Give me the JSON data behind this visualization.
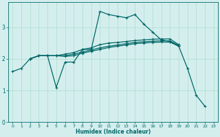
{
  "xlabel": "Humidex (Indice chaleur)",
  "bg_color": "#d4eeee",
  "line_color": "#006666",
  "grid_color": "#aaddcc",
  "xlim": [
    -0.5,
    23.5
  ],
  "ylim": [
    0,
    3.8
  ],
  "xticks": [
    0,
    1,
    2,
    3,
    4,
    5,
    6,
    7,
    8,
    9,
    10,
    11,
    12,
    13,
    14,
    15,
    16,
    17,
    18,
    19,
    20,
    21,
    22,
    23
  ],
  "yticks": [
    0,
    1,
    2,
    3
  ],
  "lines": [
    {
      "x": [
        0,
        1,
        2,
        3,
        4,
        5,
        6,
        7,
        8,
        9,
        10,
        11,
        12,
        13,
        14,
        15,
        16,
        17,
        18,
        19,
        20,
        21,
        22
      ],
      "y": [
        1.6,
        1.7,
        2.0,
        2.1,
        2.1,
        1.1,
        1.9,
        1.9,
        2.3,
        2.3,
        3.5,
        3.4,
        3.35,
        3.3,
        3.4,
        3.1,
        2.85,
        2.6,
        2.55,
        2.4,
        1.7,
        0.85,
        0.5
      ]
    },
    {
      "x": [
        2,
        3,
        4,
        5,
        6,
        7,
        8,
        9,
        10,
        11,
        12,
        13,
        14,
        15,
        16,
        17,
        18,
        19
      ],
      "y": [
        2.0,
        2.1,
        2.1,
        2.1,
        2.15,
        2.2,
        2.3,
        2.35,
        2.45,
        2.5,
        2.52,
        2.55,
        2.58,
        2.6,
        2.62,
        2.63,
        2.63,
        2.45
      ]
    },
    {
      "x": [
        2,
        3,
        4,
        5,
        6,
        7,
        8,
        9,
        10,
        11,
        12,
        13,
        14,
        15,
        16,
        17,
        18,
        19
      ],
      "y": [
        2.0,
        2.1,
        2.1,
        2.1,
        2.1,
        2.15,
        2.22,
        2.28,
        2.35,
        2.4,
        2.44,
        2.48,
        2.52,
        2.54,
        2.56,
        2.57,
        2.57,
        2.42
      ]
    },
    {
      "x": [
        2,
        3,
        4,
        5,
        6,
        7,
        8,
        9,
        10,
        11,
        12,
        13,
        14,
        15,
        16,
        17,
        18,
        19
      ],
      "y": [
        2.0,
        2.1,
        2.1,
        2.1,
        2.08,
        2.1,
        2.18,
        2.24,
        2.3,
        2.36,
        2.4,
        2.44,
        2.48,
        2.5,
        2.52,
        2.53,
        2.53,
        2.4
      ]
    }
  ]
}
